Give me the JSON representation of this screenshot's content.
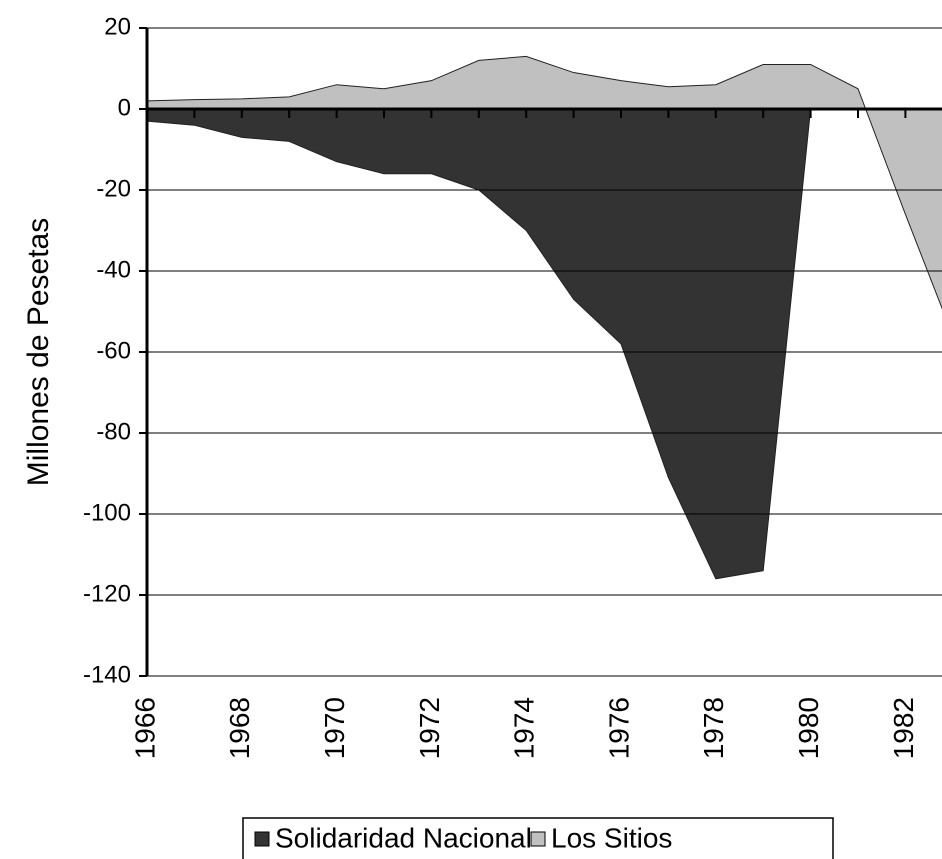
{
  "chart_data": {
    "type": "area",
    "y_label": "Millones de Pesetas",
    "x": [
      1966,
      1967,
      1968,
      1969,
      1970,
      1971,
      1972,
      1973,
      1974,
      1975,
      1976,
      1977,
      1978,
      1979,
      1980,
      1981,
      1982,
      1983
    ],
    "series": [
      {
        "name": "Solidaridad Nacional",
        "color": "#333333",
        "values": [
          -3,
          -4,
          -7,
          -8,
          -13,
          -16,
          -16,
          -20,
          -30,
          -47,
          -58,
          -91,
          -116,
          -114,
          0,
          null,
          null,
          null
        ]
      },
      {
        "name": "Los Sitios",
        "color": "#c0c0c0",
        "values": [
          2,
          2.3,
          2.5,
          3,
          6,
          5,
          7,
          12,
          13,
          9,
          7,
          5.5,
          6,
          11,
          11,
          5,
          -26,
          -56
        ]
      }
    ],
    "xlim": [
      1966,
      1983
    ],
    "xticks": [
      1966,
      1968,
      1970,
      1972,
      1974,
      1976,
      1978,
      1980,
      1982
    ],
    "ylim": [
      -140,
      20
    ],
    "yticks": [
      -140,
      -120,
      -100,
      -80,
      -60,
      -40,
      -20,
      0,
      20
    ],
    "grid": true,
    "legend": "bottom"
  }
}
